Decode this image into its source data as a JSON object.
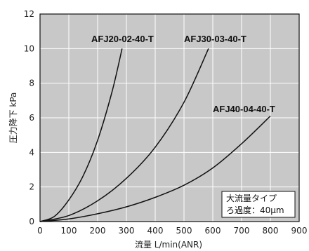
{
  "chart_data": {
    "type": "line",
    "title": "",
    "xlabel": "流量 L/min(ANR)",
    "ylabel": "圧力降下 kPa",
    "xlim": [
      0,
      900
    ],
    "ylim": [
      0,
      12
    ],
    "xticks": [
      "0",
      "100",
      "200",
      "300",
      "400",
      "500",
      "600",
      "700",
      "800",
      "900"
    ],
    "yticks": [
      "0",
      "2",
      "4",
      "6",
      "8",
      "10",
      "12"
    ],
    "grid": true,
    "series": [
      {
        "name": "AFJ20-02-40-T",
        "x": [
          0,
          50,
          100,
          150,
          200,
          250,
          285
        ],
        "values": [
          0,
          0.3,
          1.25,
          2.65,
          4.7,
          7.5,
          10.0
        ]
      },
      {
        "name": "AFJ30-03-40-T",
        "x": [
          0,
          100,
          200,
          300,
          400,
          500,
          585
        ],
        "values": [
          0,
          0.35,
          1.2,
          2.5,
          4.3,
          6.9,
          10.0
        ]
      },
      {
        "name": "AFJ40-04-40-T",
        "x": [
          0,
          100,
          200,
          300,
          400,
          500,
          600,
          700,
          800
        ],
        "values": [
          0,
          0.15,
          0.45,
          0.85,
          1.4,
          2.1,
          3.1,
          4.5,
          6.1
        ]
      }
    ],
    "annotations": [
      "大流量タイプ",
      "ろ過度：40μm"
    ]
  }
}
